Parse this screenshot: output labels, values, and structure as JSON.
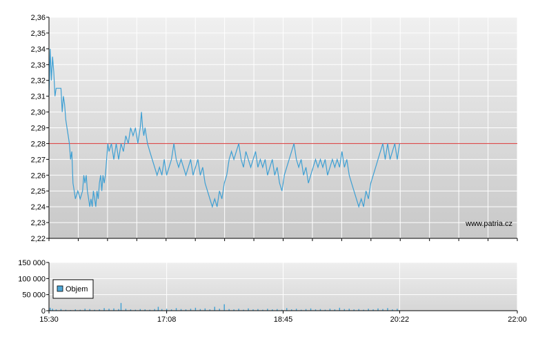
{
  "watermark": "www.patria.cz",
  "legend": {
    "label": "Objem",
    "color": "#4da6d6"
  },
  "colors": {
    "price_line": "#3d9fd3",
    "reference_line": "#d93030",
    "volume_bar": "#3d9fd3",
    "grid": "#ffffff",
    "plot_top": "#f0f0f0",
    "plot_bottom": "#c8c8c8"
  },
  "chart_data": [
    {
      "type": "line",
      "name": "price",
      "ylim": [
        2.22,
        2.36
      ],
      "y_ticks": [
        "2,22",
        "2,23",
        "2,24",
        "2,25",
        "2,26",
        "2,27",
        "2,28",
        "2,29",
        "2,30",
        "2,31",
        "2,32",
        "2,33",
        "2,34",
        "2,35",
        "2,36"
      ],
      "reference_value": 2.28,
      "x_range_min": [
        930,
        1320
      ],
      "grid": true,
      "series": [
        {
          "values": [
            [
              930,
              2.31
            ],
            [
              931,
              2.34
            ],
            [
              932,
              2.32
            ],
            [
              933,
              2.335
            ],
            [
              934,
              2.325
            ],
            [
              935,
              2.31
            ],
            [
              936,
              2.315
            ],
            [
              938,
              2.315
            ],
            [
              940,
              2.315
            ],
            [
              941,
              2.3
            ],
            [
              942,
              2.31
            ],
            [
              943,
              2.305
            ],
            [
              944,
              2.295
            ],
            [
              945,
              2.29
            ],
            [
              946,
              2.285
            ],
            [
              947,
              2.28
            ],
            [
              948,
              2.27
            ],
            [
              949,
              2.275
            ],
            [
              950,
              2.255
            ],
            [
              951,
              2.25
            ],
            [
              952,
              2.245
            ],
            [
              954,
              2.25
            ],
            [
              956,
              2.245
            ],
            [
              958,
              2.25
            ],
            [
              959,
              2.26
            ],
            [
              960,
              2.255
            ],
            [
              961,
              2.26
            ],
            [
              962,
              2.25
            ],
            [
              963,
              2.245
            ],
            [
              964,
              2.24
            ],
            [
              965,
              2.245
            ],
            [
              966,
              2.24
            ],
            [
              967,
              2.25
            ],
            [
              968,
              2.245
            ],
            [
              969,
              2.24
            ],
            [
              970,
              2.25
            ],
            [
              971,
              2.245
            ],
            [
              972,
              2.255
            ],
            [
              973,
              2.26
            ],
            [
              974,
              2.25
            ],
            [
              975,
              2.26
            ],
            [
              976,
              2.255
            ],
            [
              977,
              2.26
            ],
            [
              978,
              2.27
            ],
            [
              979,
              2.28
            ],
            [
              980,
              2.275
            ],
            [
              982,
              2.28
            ],
            [
              984,
              2.27
            ],
            [
              986,
              2.28
            ],
            [
              988,
              2.27
            ],
            [
              990,
              2.28
            ],
            [
              992,
              2.275
            ],
            [
              994,
              2.285
            ],
            [
              996,
              2.28
            ],
            [
              998,
              2.29
            ],
            [
              1000,
              2.285
            ],
            [
              1002,
              2.29
            ],
            [
              1004,
              2.28
            ],
            [
              1006,
              2.29
            ],
            [
              1007,
              2.3
            ],
            [
              1008,
              2.29
            ],
            [
              1009,
              2.285
            ],
            [
              1010,
              2.29
            ],
            [
              1012,
              2.28
            ],
            [
              1014,
              2.275
            ],
            [
              1016,
              2.27
            ],
            [
              1018,
              2.265
            ],
            [
              1020,
              2.26
            ],
            [
              1022,
              2.265
            ],
            [
              1024,
              2.26
            ],
            [
              1026,
              2.27
            ],
            [
              1028,
              2.26
            ],
            [
              1030,
              2.265
            ],
            [
              1032,
              2.27
            ],
            [
              1034,
              2.28
            ],
            [
              1036,
              2.27
            ],
            [
              1038,
              2.265
            ],
            [
              1040,
              2.27
            ],
            [
              1042,
              2.265
            ],
            [
              1044,
              2.26
            ],
            [
              1046,
              2.265
            ],
            [
              1048,
              2.27
            ],
            [
              1050,
              2.26
            ],
            [
              1052,
              2.265
            ],
            [
              1054,
              2.27
            ],
            [
              1056,
              2.26
            ],
            [
              1058,
              2.265
            ],
            [
              1060,
              2.255
            ],
            [
              1062,
              2.25
            ],
            [
              1064,
              2.245
            ],
            [
              1066,
              2.24
            ],
            [
              1068,
              2.245
            ],
            [
              1070,
              2.24
            ],
            [
              1072,
              2.25
            ],
            [
              1074,
              2.245
            ],
            [
              1076,
              2.255
            ],
            [
              1078,
              2.26
            ],
            [
              1080,
              2.27
            ],
            [
              1082,
              2.275
            ],
            [
              1084,
              2.27
            ],
            [
              1086,
              2.275
            ],
            [
              1088,
              2.28
            ],
            [
              1090,
              2.27
            ],
            [
              1092,
              2.265
            ],
            [
              1094,
              2.275
            ],
            [
              1096,
              2.27
            ],
            [
              1098,
              2.265
            ],
            [
              1100,
              2.27
            ],
            [
              1102,
              2.275
            ],
            [
              1104,
              2.265
            ],
            [
              1106,
              2.27
            ],
            [
              1108,
              2.265
            ],
            [
              1110,
              2.27
            ],
            [
              1112,
              2.26
            ],
            [
              1114,
              2.265
            ],
            [
              1116,
              2.27
            ],
            [
              1118,
              2.26
            ],
            [
              1120,
              2.265
            ],
            [
              1122,
              2.255
            ],
            [
              1124,
              2.25
            ],
            [
              1126,
              2.26
            ],
            [
              1128,
              2.265
            ],
            [
              1130,
              2.27
            ],
            [
              1132,
              2.275
            ],
            [
              1134,
              2.28
            ],
            [
              1136,
              2.27
            ],
            [
              1138,
              2.265
            ],
            [
              1140,
              2.27
            ],
            [
              1142,
              2.26
            ],
            [
              1144,
              2.265
            ],
            [
              1146,
              2.255
            ],
            [
              1148,
              2.26
            ],
            [
              1150,
              2.265
            ],
            [
              1152,
              2.27
            ],
            [
              1154,
              2.265
            ],
            [
              1156,
              2.27
            ],
            [
              1158,
              2.265
            ],
            [
              1160,
              2.27
            ],
            [
              1162,
              2.26
            ],
            [
              1164,
              2.265
            ],
            [
              1166,
              2.27
            ],
            [
              1168,
              2.265
            ],
            [
              1170,
              2.27
            ],
            [
              1172,
              2.265
            ],
            [
              1174,
              2.275
            ],
            [
              1176,
              2.265
            ],
            [
              1178,
              2.27
            ],
            [
              1180,
              2.26
            ],
            [
              1182,
              2.255
            ],
            [
              1184,
              2.25
            ],
            [
              1186,
              2.245
            ],
            [
              1188,
              2.24
            ],
            [
              1190,
              2.245
            ],
            [
              1192,
              2.24
            ],
            [
              1194,
              2.25
            ],
            [
              1196,
              2.245
            ],
            [
              1198,
              2.255
            ],
            [
              1200,
              2.26
            ],
            [
              1202,
              2.265
            ],
            [
              1204,
              2.27
            ],
            [
              1206,
              2.275
            ],
            [
              1208,
              2.28
            ],
            [
              1210,
              2.27
            ],
            [
              1212,
              2.28
            ],
            [
              1214,
              2.27
            ],
            [
              1216,
              2.275
            ],
            [
              1218,
              2.28
            ],
            [
              1220,
              2.27
            ],
            [
              1222,
              2.28
            ]
          ]
        }
      ]
    },
    {
      "type": "bar",
      "name": "Objem",
      "ylim": [
        0,
        150000
      ],
      "y_ticks": [
        "0",
        "50 000",
        "100 000",
        "150 000"
      ],
      "x_ticks": [
        "15:30",
        "17:08",
        "18:45",
        "20:22",
        "22:00"
      ],
      "x_tick_minutes": [
        930,
        1028,
        1125,
        1222,
        1320
      ],
      "grid": true,
      "series": [
        {
          "name": "Objem",
          "values": [
            [
              931,
              9000
            ],
            [
              933,
              6000
            ],
            [
              936,
              4000
            ],
            [
              940,
              5000
            ],
            [
              944,
              3000
            ],
            [
              948,
              2000
            ],
            [
              952,
              4000
            ],
            [
              956,
              3000
            ],
            [
              960,
              6000
            ],
            [
              964,
              5000
            ],
            [
              968,
              3000
            ],
            [
              972,
              4000
            ],
            [
              976,
              8000
            ],
            [
              980,
              6000
            ],
            [
              984,
              7000
            ],
            [
              988,
              5000
            ],
            [
              990,
              24000
            ],
            [
              994,
              6000
            ],
            [
              998,
              4000
            ],
            [
              1002,
              3000
            ],
            [
              1006,
              5000
            ],
            [
              1010,
              4000
            ],
            [
              1014,
              3000
            ],
            [
              1018,
              5000
            ],
            [
              1021,
              12000
            ],
            [
              1024,
              5000
            ],
            [
              1028,
              6000
            ],
            [
              1032,
              4000
            ],
            [
              1036,
              8000
            ],
            [
              1040,
              5000
            ],
            [
              1044,
              4000
            ],
            [
              1048,
              6000
            ],
            [
              1052,
              9000
            ],
            [
              1056,
              5000
            ],
            [
              1060,
              7000
            ],
            [
              1064,
              4000
            ],
            [
              1068,
              12000
            ],
            [
              1072,
              6000
            ],
            [
              1076,
              20000
            ],
            [
              1080,
              5000
            ],
            [
              1084,
              4000
            ],
            [
              1088,
              6000
            ],
            [
              1092,
              3000
            ],
            [
              1096,
              7000
            ],
            [
              1100,
              4000
            ],
            [
              1104,
              5000
            ],
            [
              1108,
              3000
            ],
            [
              1112,
              6000
            ],
            [
              1116,
              4000
            ],
            [
              1120,
              5000
            ],
            [
              1124,
              3000
            ],
            [
              1128,
              8000
            ],
            [
              1132,
              4000
            ],
            [
              1136,
              6000
            ],
            [
              1140,
              3000
            ],
            [
              1144,
              5000
            ],
            [
              1148,
              7000
            ],
            [
              1152,
              4000
            ],
            [
              1156,
              5000
            ],
            [
              1160,
              3000
            ],
            [
              1164,
              6000
            ],
            [
              1168,
              4000
            ],
            [
              1172,
              9000
            ],
            [
              1176,
              5000
            ],
            [
              1180,
              6000
            ],
            [
              1184,
              4000
            ],
            [
              1188,
              5000
            ],
            [
              1192,
              3000
            ],
            [
              1196,
              6000
            ],
            [
              1200,
              4000
            ],
            [
              1204,
              7000
            ],
            [
              1208,
              5000
            ],
            [
              1212,
              8000
            ],
            [
              1216,
              4000
            ],
            [
              1220,
              6000
            ]
          ]
        }
      ]
    }
  ]
}
